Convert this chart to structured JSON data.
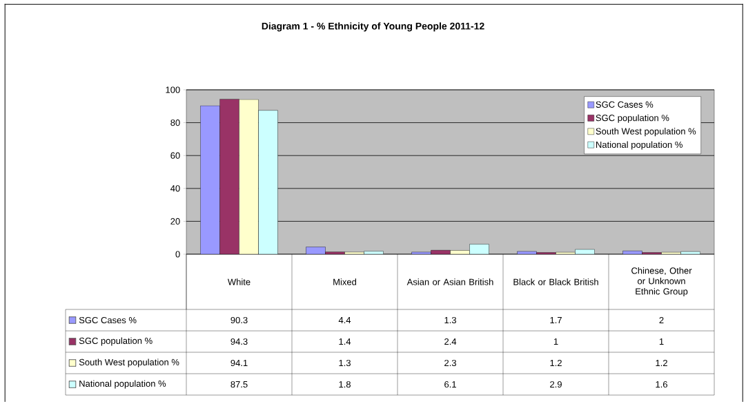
{
  "chart_data": {
    "type": "bar",
    "title": "Diagram 1 - % Ethnicity of Young People 2011-12",
    "categories": [
      "White",
      "Mixed",
      "Asian or Asian British",
      "Black or Black British",
      "Chinese, Other or Unknown Ethnic Group"
    ],
    "series": [
      {
        "name": "SGC Cases %",
        "color": "#9999ff",
        "values": [
          90.3,
          4.4,
          1.3,
          1.7,
          2
        ]
      },
      {
        "name": "SGC population %",
        "color": "#993366",
        "values": [
          94.3,
          1.4,
          2.4,
          1,
          1
        ]
      },
      {
        "name": "South West population %",
        "color": "#ffffcc",
        "values": [
          94.1,
          1.3,
          2.3,
          1.2,
          1.2
        ]
      },
      {
        "name": "National population %",
        "color": "#ccffff",
        "values": [
          87.5,
          1.8,
          6.1,
          2.9,
          1.6
        ]
      }
    ],
    "ylim": [
      0,
      100
    ],
    "yticks": [
      0,
      20,
      40,
      60,
      80,
      100
    ],
    "grid": "y",
    "legend": "top right",
    "data_labels": true
  }
}
